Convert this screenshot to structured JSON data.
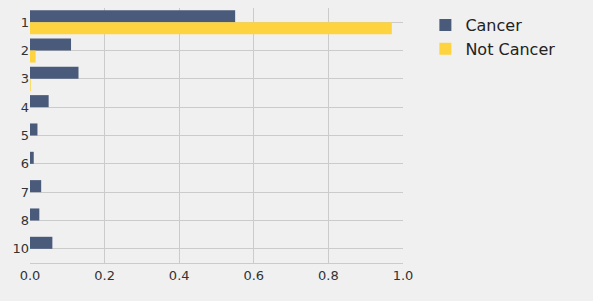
{
  "chart_data": {
    "type": "bar",
    "orientation": "horizontal",
    "categories": [
      "1",
      "2",
      "3",
      "4",
      "5",
      "6",
      "7",
      "8",
      "10"
    ],
    "series": [
      {
        "name": "Cancer",
        "color": "#4a5a7a",
        "values": [
          0.55,
          0.11,
          0.13,
          0.05,
          0.02,
          0.01,
          0.03,
          0.025,
          0.06
        ]
      },
      {
        "name": "Not Cancer",
        "color": "#fdd43f",
        "values": [
          0.97,
          0.015,
          0.002,
          0,
          0,
          0,
          0,
          0,
          0
        ]
      }
    ],
    "xlim": [
      0,
      1
    ],
    "xticks": [
      {
        "value": 0,
        "label": "0.0"
      },
      0.2,
      0.4,
      0.6,
      0.8,
      {
        "value": 1,
        "label": "1.0"
      }
    ],
    "grid": true,
    "legend": "right"
  }
}
